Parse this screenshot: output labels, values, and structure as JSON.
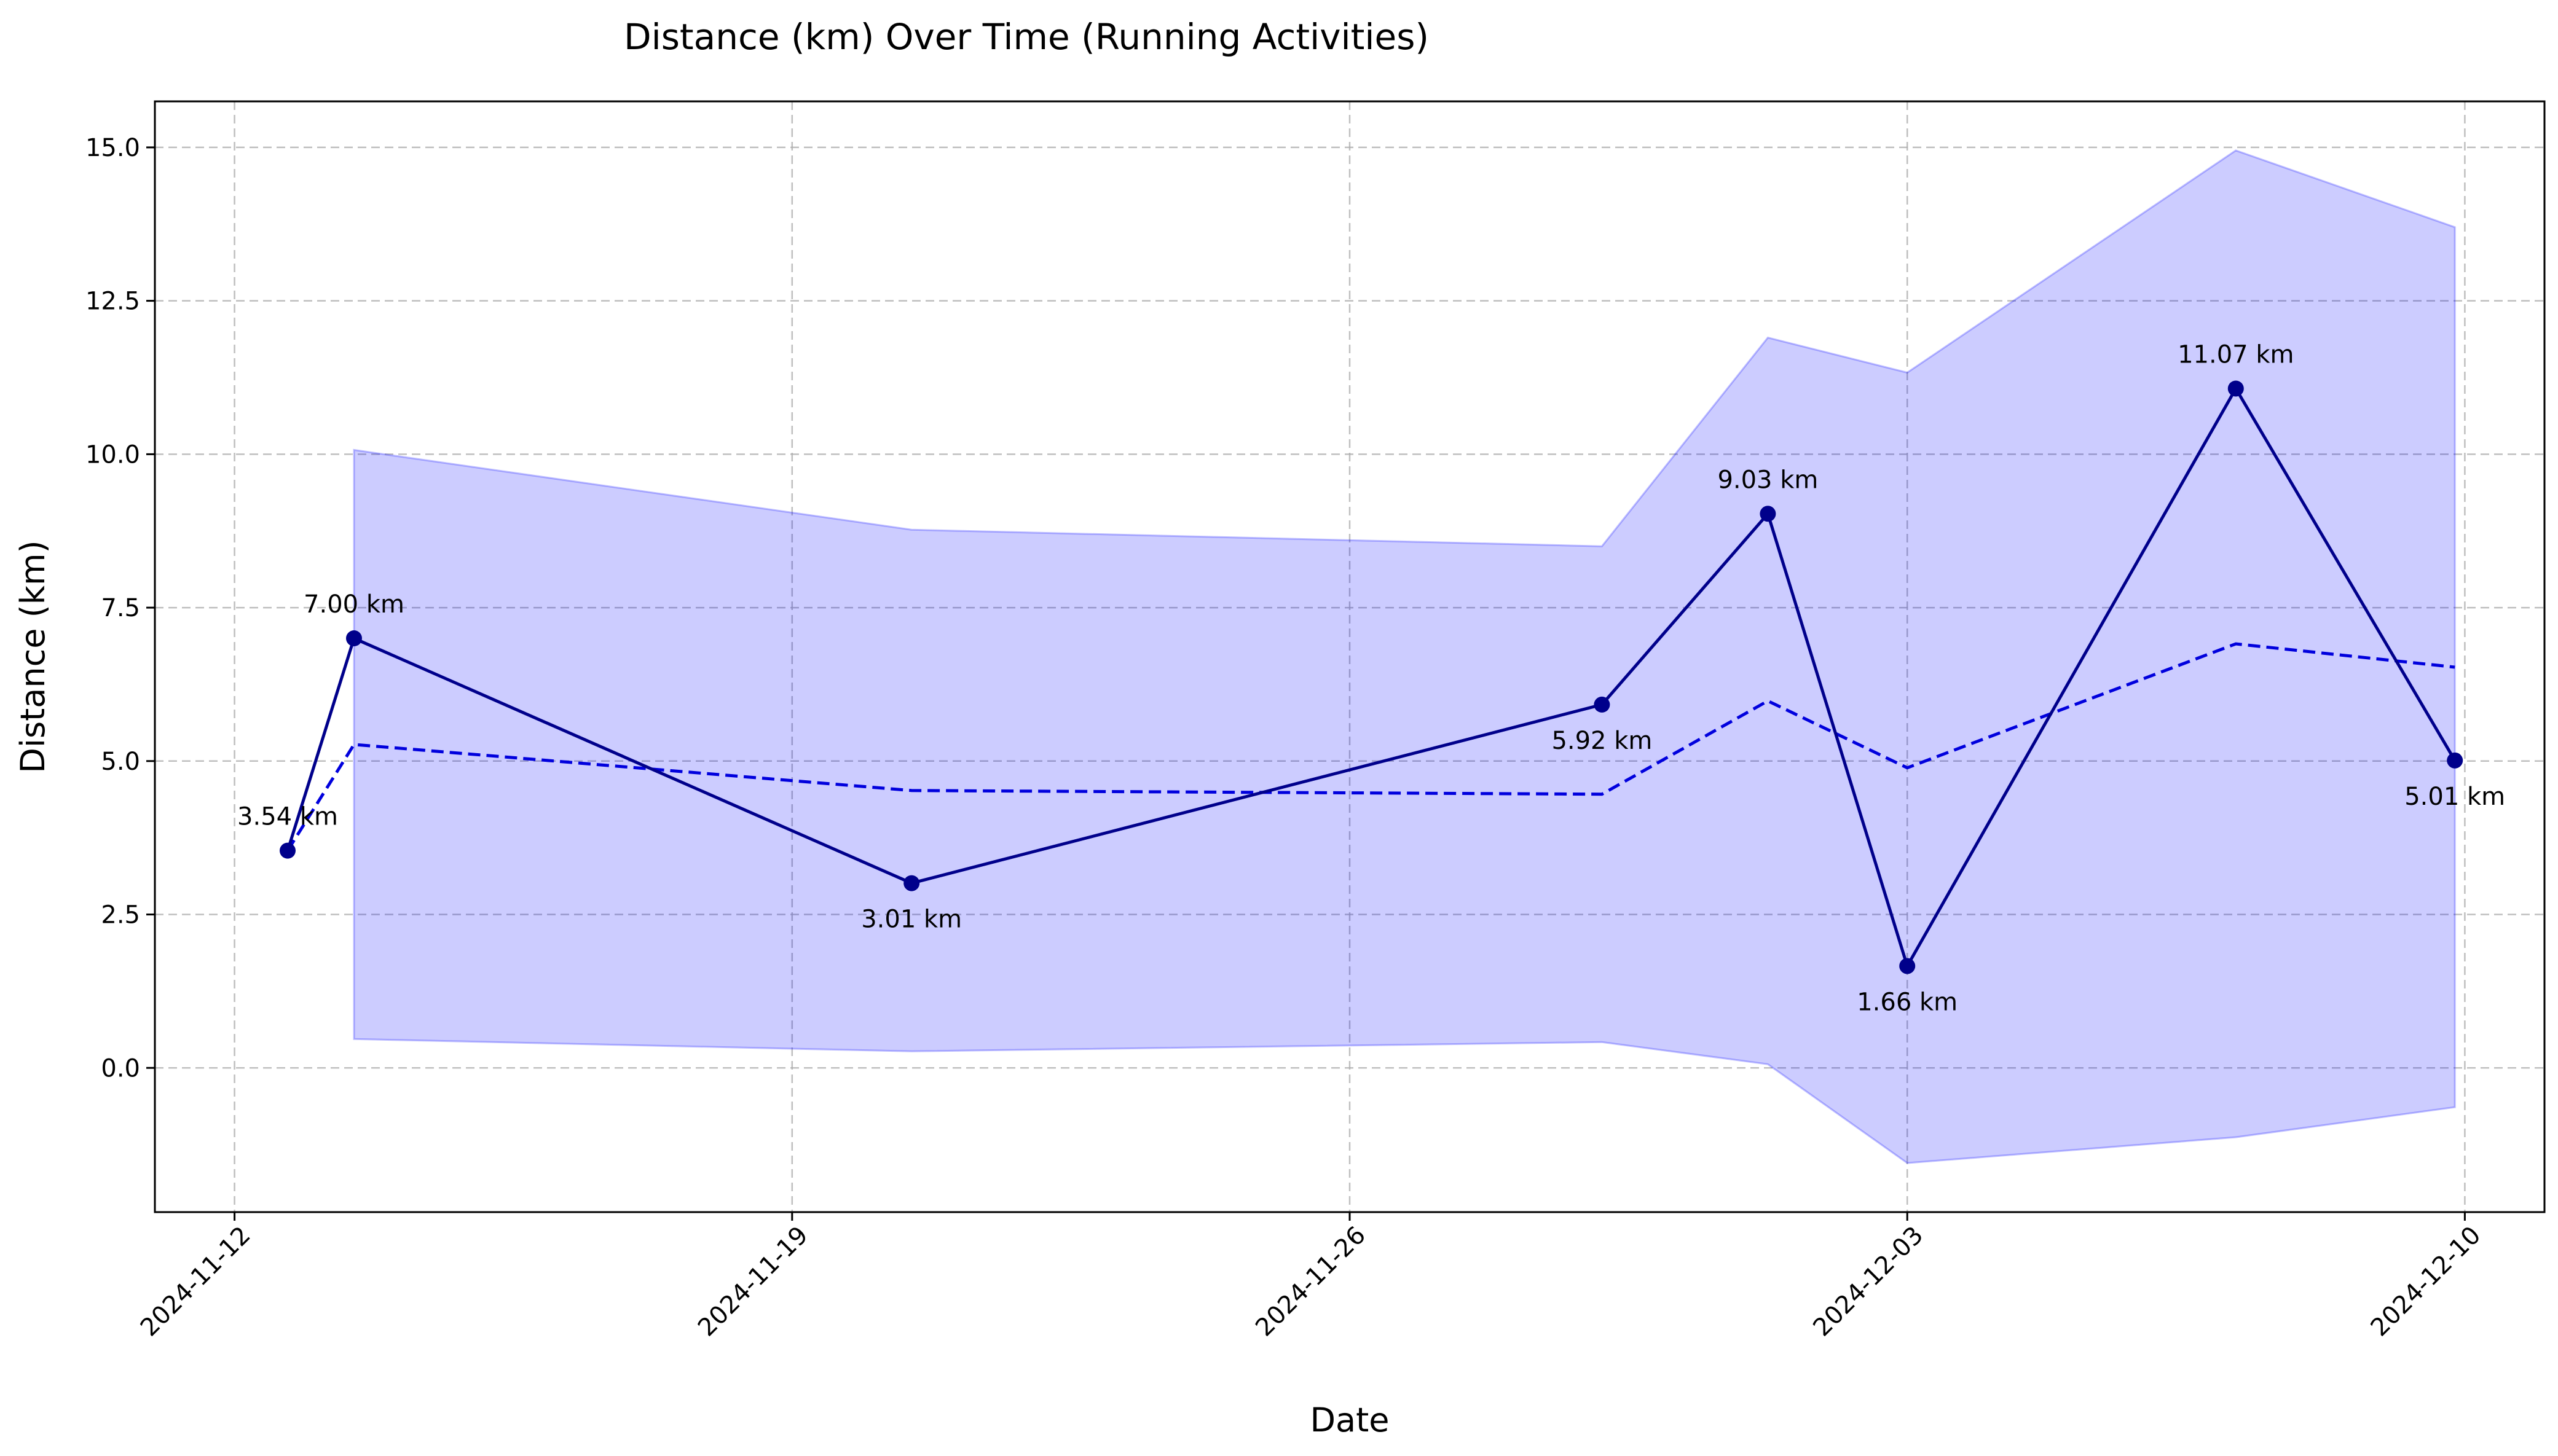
{
  "chart_data": {
    "type": "line",
    "title": "Distance (km) Over Time (Running Activities)",
    "xlabel": "Date",
    "ylabel": "Distance (km)",
    "x_ticks": [
      "2024-11-12",
      "2024-11-19",
      "2024-11-26",
      "2024-12-03",
      "2024-12-10"
    ],
    "y_ticks": [
      "0.0",
      "2.5",
      "5.0",
      "7.5",
      "10.0",
      "12.5",
      "15.0"
    ],
    "xlim": [
      "2024-11-11",
      "2024-12-11"
    ],
    "ylim": [
      -2.35,
      15.75
    ],
    "grid": true,
    "x": [
      "2024-11-12T16:00",
      "2024-11-13T12:00",
      "2024-11-20T12:00",
      "2024-11-29T04:00",
      "2024-12-01T06:00",
      "2024-12-03T00:00",
      "2024-12-07T03:00",
      "2024-12-09T21:00"
    ],
    "series": [
      {
        "role": "actual",
        "style": "solid",
        "marker": "circle",
        "color": "#00008b",
        "values": [
          3.54,
          7.0,
          3.01,
          5.92,
          9.03,
          1.66,
          11.07,
          5.01
        ],
        "labels": [
          "3.54 km",
          "7.00 km",
          "3.01 km",
          "5.92 km",
          "9.03 km",
          "1.66 km",
          "11.07 km",
          "5.01 km"
        ]
      },
      {
        "role": "rolling-mean",
        "style": "dashed",
        "color": "#0000dd",
        "values": [
          3.54,
          5.27,
          4.52,
          4.46,
          5.98,
          4.89,
          6.91,
          6.53
        ]
      }
    ],
    "band": {
      "color": "#0000ff",
      "opacity": 0.2,
      "x": [
        "2024-11-13T12:00",
        "2024-11-20T12:00",
        "2024-11-29T04:00",
        "2024-12-01T06:00",
        "2024-12-03T00:00",
        "2024-12-07T03:00",
        "2024-12-09T21:00"
      ],
      "upper": [
        10.07,
        8.77,
        8.5,
        11.9,
        11.33,
        14.95,
        13.7
      ],
      "lower": [
        0.47,
        0.27,
        0.42,
        0.06,
        -1.55,
        -1.13,
        -0.64
      ]
    }
  }
}
